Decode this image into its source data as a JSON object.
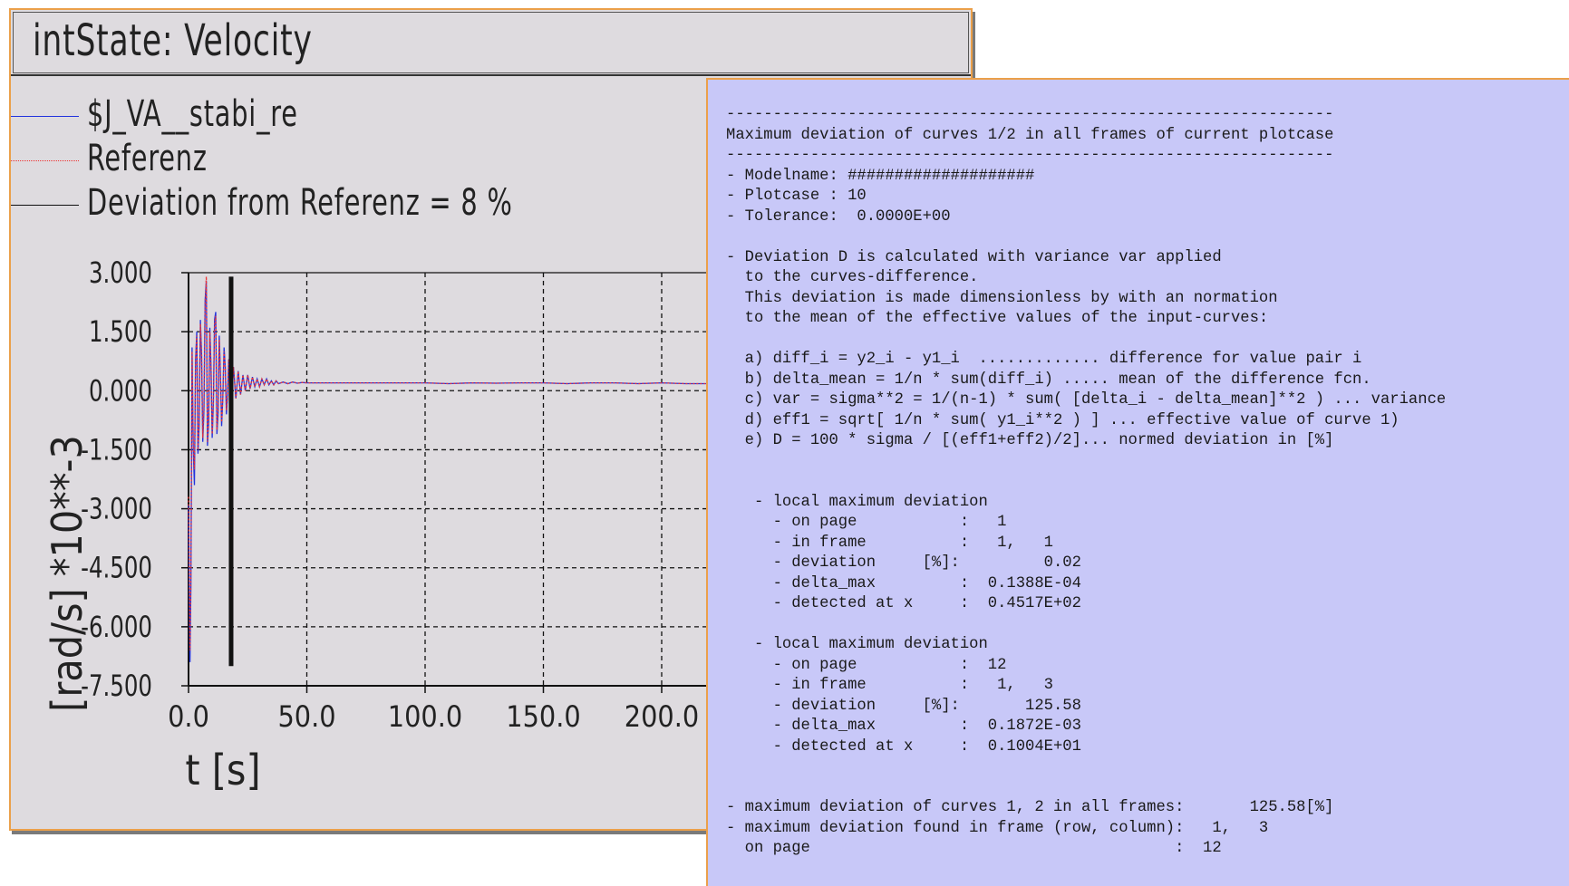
{
  "plot_window": {
    "title": "intState: Velocity",
    "legend": [
      {
        "label": "$J_VA__stabi_re",
        "color": "#2233dd",
        "style": "solid"
      },
      {
        "label": "Referenz",
        "color": "#ee3333",
        "style": "dotted"
      },
      {
        "label": "Deviation from Referenz = 8 %",
        "color": "#111111",
        "style": "solid"
      }
    ]
  },
  "chart_data": {
    "type": "line",
    "xlabel": "t [s]",
    "ylabel": "[rad/s] *10**-3",
    "x_ticks": [
      "0.0",
      "50.0",
      "100.0",
      "150.0",
      "200.0"
    ],
    "y_ticks": [
      "3.000",
      "1.500",
      "0.000",
      "-1.500",
      "-3.000",
      "-4.500",
      "-6.000",
      "-7.500"
    ],
    "xlim": [
      0,
      220
    ],
    "ylim": [
      -7.5,
      3.0
    ],
    "grid": true,
    "series": [
      {
        "name": "$J_VA__stabi_re",
        "color": "#2233dd",
        "style": "solid",
        "x": [
          0.0,
          0.6,
          1.0,
          1.5,
          2.0,
          2.5,
          3.0,
          3.5,
          4.0,
          4.5,
          5.0,
          5.5,
          6.0,
          6.5,
          7.0,
          7.5,
          8.0,
          8.5,
          9.0,
          9.5,
          10.0,
          10.5,
          11.0,
          11.5,
          12.0,
          12.5,
          13.0,
          13.5,
          14.0,
          14.5,
          15.0,
          15.5,
          16.0,
          16.5,
          17.0,
          17.5,
          18.0,
          19.0,
          20.0,
          21.0,
          22.0,
          23.0,
          24.0,
          25.0,
          26.0,
          27.0,
          28.0,
          29.0,
          30.0,
          31.0,
          32.0,
          33.0,
          34.0,
          35.0,
          36.0,
          37.0,
          38.0,
          40.0,
          42.0,
          44.0,
          46.0,
          48.0,
          50.0,
          55.0,
          60.0,
          65.0,
          70.0,
          80.0,
          90.0,
          100.0,
          110.0,
          120.0,
          130.0,
          140.0,
          150.0,
          160.0,
          170.0,
          180.0,
          190.0,
          200.0,
          210.0,
          220.0
        ],
        "y": [
          -2.9,
          -6.9,
          -5.0,
          1.1,
          -1.5,
          -2.4,
          0.8,
          1.5,
          -1.6,
          -0.9,
          1.8,
          0.9,
          -1.3,
          -0.5,
          2.3,
          2.8,
          -1.4,
          -0.8,
          1.6,
          0.6,
          -1.2,
          -0.3,
          1.8,
          2.0,
          -1.1,
          -0.6,
          1.4,
          0.4,
          -0.9,
          -0.2,
          1.1,
          0.6,
          -0.6,
          -0.1,
          0.8,
          0.5,
          -0.4,
          0.6,
          -0.2,
          0.5,
          -0.1,
          0.4,
          0.0,
          0.4,
          0.05,
          0.35,
          0.1,
          0.3,
          0.1,
          0.3,
          0.15,
          0.3,
          0.15,
          0.25,
          0.15,
          0.25,
          0.18,
          0.22,
          0.18,
          0.22,
          0.19,
          0.21,
          0.2,
          0.2,
          0.2,
          0.2,
          0.2,
          0.2,
          0.2,
          0.2,
          0.18,
          0.2,
          0.19,
          0.2,
          0.2,
          0.18,
          0.2,
          0.2,
          0.18,
          0.2,
          0.18,
          0.18
        ]
      },
      {
        "name": "Referenz",
        "color": "#ee3333",
        "style": "dotted",
        "x": [
          0.0,
          0.6,
          1.0,
          1.5,
          2.0,
          2.5,
          3.0,
          3.5,
          4.0,
          4.5,
          5.0,
          5.5,
          6.0,
          6.5,
          7.0,
          7.5,
          8.0,
          8.5,
          9.0,
          9.5,
          10.0,
          10.5,
          11.0,
          11.5,
          12.0,
          12.5,
          13.0,
          13.5,
          14.0,
          14.5,
          15.0,
          15.5,
          16.0,
          16.5,
          17.0,
          17.5,
          18.0,
          19.0,
          20.0,
          21.0,
          22.0,
          23.0,
          24.0,
          25.0,
          26.0,
          27.0,
          28.0,
          29.0,
          30.0,
          31.0,
          32.0,
          33.0,
          34.0,
          35.0,
          36.0,
          37.0,
          38.0,
          40.0,
          42.0,
          44.0,
          46.0,
          48.0,
          50.0,
          55.0,
          60.0,
          65.0,
          70.0,
          80.0,
          90.0,
          100.0,
          110.0,
          120.0,
          130.0,
          140.0,
          150.0,
          160.0,
          170.0,
          180.0,
          190.0,
          200.0,
          210.0,
          220.0
        ],
        "y": [
          -2.7,
          -6.6,
          -4.8,
          1.0,
          -1.4,
          -2.0,
          0.8,
          1.4,
          -1.5,
          -0.8,
          1.7,
          0.9,
          -1.2,
          -0.4,
          2.2,
          2.9,
          -1.3,
          -0.7,
          1.5,
          0.6,
          -1.1,
          -0.3,
          1.7,
          1.9,
          -1.0,
          -0.5,
          1.3,
          0.4,
          -0.8,
          -0.2,
          1.0,
          0.6,
          -0.5,
          -0.1,
          0.8,
          0.5,
          -0.3,
          0.6,
          -0.2,
          0.5,
          -0.1,
          0.4,
          0.0,
          0.4,
          0.05,
          0.35,
          0.1,
          0.3,
          0.1,
          0.3,
          0.15,
          0.3,
          0.15,
          0.25,
          0.15,
          0.25,
          0.18,
          0.22,
          0.18,
          0.22,
          0.19,
          0.21,
          0.2,
          0.2,
          0.2,
          0.2,
          0.2,
          0.2,
          0.2,
          0.2,
          0.18,
          0.2,
          0.19,
          0.2,
          0.2,
          0.18,
          0.2,
          0.2,
          0.18,
          0.2,
          0.18,
          0.18
        ]
      },
      {
        "name": "Deviation from Referenz = 8 %",
        "color": "#111111",
        "style": "marker",
        "x": [
          18.0,
          18.0
        ],
        "y": [
          2.9,
          -7.0
        ]
      }
    ]
  },
  "info_window": {
    "lines": [
      "-----------------------------------------------------------------",
      "Maximum deviation of curves 1/2 in all frames of current plotcase",
      "-----------------------------------------------------------------",
      "- Modelname: ####################",
      "- Plotcase : 10",
      "- Tolerance:  0.0000E+00",
      "",
      "- Deviation D is calculated with variance var applied",
      "  to the curves-difference.",
      "  This deviation is made dimensionless by with an normation",
      "  to the mean of the effective values of the input-curves:",
      "",
      "  a) diff_i = y2_i - y1_i  ............. difference for value pair i",
      "  b) delta_mean = 1/n * sum(diff_i) ..... mean of the difference fcn.",
      "  c) var = sigma**2 = 1/(n-1) * sum( [delta_i - delta_mean]**2 ) ... variance",
      "  d) eff1 = sqrt[ 1/n * sum( y1_i**2 ) ] ... effective value of curve 1)",
      "  e) D = 100 * sigma / [(eff1+eff2)/2]... normed deviation in [%]",
      "",
      "",
      "   - local maximum deviation",
      "     - on page           :   1",
      "     - in frame          :   1,   1",
      "     - deviation     [%]:         0.02",
      "     - delta_max         :  0.1388E-04",
      "     - detected at x     :  0.4517E+02",
      "",
      "   - local maximum deviation",
      "     - on page           :  12",
      "     - in frame          :   1,   3",
      "     - deviation     [%]:       125.58",
      "     - delta_max         :  0.1872E-03",
      "     - detected at x     :  0.1004E+01",
      "",
      "",
      "- maximum deviation of curves 1, 2 in all frames:       125.58[%]",
      "- maximum deviation found in frame (row, column):   1,   3",
      "  on page                                       :  12"
    ]
  }
}
